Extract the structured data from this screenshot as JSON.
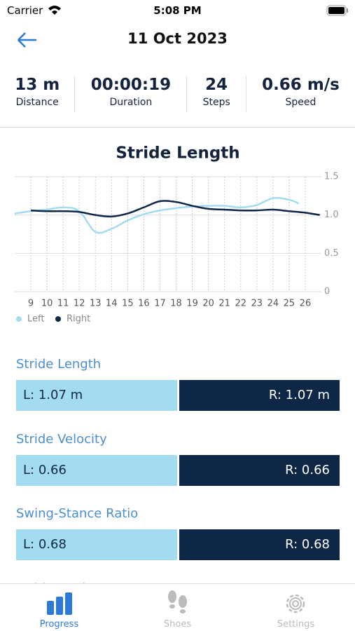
{
  "status_bar": {
    "carrier": "Carrier",
    "time": "5:08 PM"
  },
  "header": {
    "title": "11 Oct 2023"
  },
  "stats": [
    {
      "value": "13 m",
      "label": "Distance"
    },
    {
      "value": "00:00:19",
      "label": "Duration"
    },
    {
      "value": "24",
      "label": "Steps"
    },
    {
      "value": "0.66 m/s",
      "label": "Speed"
    }
  ],
  "chart_data": {
    "type": "line",
    "title": "Stride Length",
    "xlim": [
      8,
      27
    ],
    "xticks": [
      9,
      10,
      11,
      12,
      13,
      14,
      15,
      16,
      17,
      18,
      19,
      20,
      21,
      22,
      23,
      24,
      25,
      26
    ],
    "ylim": [
      0,
      1.5
    ],
    "yticks": [
      0,
      0.5,
      {
        "value": 1,
        "label": "1.0"
      },
      1.5
    ],
    "grid": true,
    "series": [
      {
        "name": "Left",
        "color": "#a3dcf0",
        "x": [
          8,
          9,
          10,
          11,
          12,
          13,
          14,
          15,
          16,
          17,
          18,
          19,
          20,
          21,
          22,
          23,
          24,
          25,
          25.6
        ],
        "values": [
          1.02,
          1.05,
          1.07,
          1.1,
          1.05,
          0.78,
          0.82,
          0.93,
          1.01,
          1.06,
          1.09,
          1.11,
          1.12,
          1.12,
          1.1,
          1.13,
          1.22,
          1.2,
          1.15
        ]
      },
      {
        "name": "Right",
        "color": "#0f2747",
        "x": [
          9,
          10,
          11,
          12,
          13,
          14,
          15,
          16,
          17,
          18,
          19,
          20,
          21,
          22,
          23,
          24,
          25,
          26,
          26.9
        ],
        "values": [
          1.06,
          1.05,
          1.05,
          1.04,
          1.0,
          0.98,
          1.02,
          1.1,
          1.18,
          1.17,
          1.12,
          1.08,
          1.07,
          1.06,
          1.06,
          1.07,
          1.05,
          1.03,
          1.0
        ]
      }
    ]
  },
  "metrics": [
    {
      "title": "Stride Length",
      "left": "L: 1.07 m",
      "right": "R: 1.07 m"
    },
    {
      "title": "Stride Velocity",
      "left": "L: 0.66",
      "right": "R: 0.66"
    },
    {
      "title": "Swing-Stance Ratio",
      "left": "L: 0.68",
      "right": "R: 0.68"
    },
    {
      "title": "Stride Angle"
    }
  ],
  "tabs": [
    {
      "label": "Progress"
    },
    {
      "label": "Shoes"
    },
    {
      "label": "Settings"
    }
  ]
}
